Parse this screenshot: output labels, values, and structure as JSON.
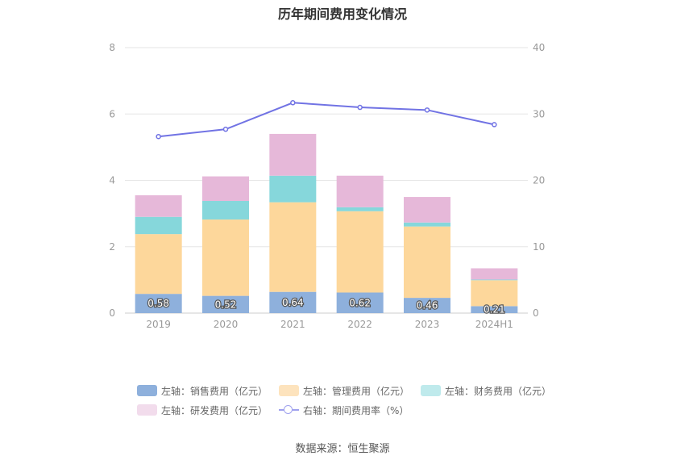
{
  "title": "历年期间费用变化情况",
  "source": "数据来源：恒生聚源",
  "colors": {
    "sales": "#8eb0dc",
    "mgmt": "#fdd79b",
    "finance": "#86d7db",
    "rnd": "#e6b8d9",
    "line": "#7173e4",
    "axis_text": "#999999",
    "grid": "#e6e6e6"
  },
  "legend": [
    {
      "label": "左轴：销售费用（亿元）",
      "color": "#8eb0dc",
      "kind": "bar"
    },
    {
      "label": "左轴：管理费用（亿元）",
      "color": "#fde3bd",
      "kind": "bar"
    },
    {
      "label": "左轴：财务费用（亿元）",
      "color": "#bfeaec",
      "kind": "bar"
    },
    {
      "label": "左轴：研发费用（亿元）",
      "color": "#f2dcec",
      "kind": "bar"
    },
    {
      "label": "右轴：期间费用率（%）",
      "color": "#9fa1ee",
      "kind": "line"
    }
  ],
  "chart_data": {
    "type": "bar",
    "title": "历年期间费用变化情况",
    "categories": [
      "2019",
      "2020",
      "2021",
      "2022",
      "2023",
      "2024H1"
    ],
    "y_left": {
      "ticks": [
        "0",
        "2",
        "4",
        "6",
        "8"
      ],
      "ylim": [
        0,
        8
      ]
    },
    "y_right": {
      "ticks": [
        "0",
        "10",
        "20",
        "30",
        "40"
      ],
      "ylim": [
        0,
        40
      ]
    },
    "stacked": true,
    "series": [
      {
        "name": "左轴：销售费用（亿元）",
        "axis": "left",
        "values": [
          0.58,
          0.52,
          0.64,
          0.62,
          0.46,
          0.21
        ],
        "labels": [
          "0.58",
          "0.52",
          "0.64",
          "0.62",
          "0.46",
          "0.21"
        ]
      },
      {
        "name": "左轴：管理费用（亿元）",
        "axis": "left",
        "values": [
          1.8,
          2.3,
          2.7,
          2.45,
          2.15,
          0.78
        ]
      },
      {
        "name": "左轴：财务费用（亿元）",
        "axis": "left",
        "values": [
          0.52,
          0.56,
          0.8,
          0.12,
          0.12,
          0.02
        ]
      },
      {
        "name": "左轴：研发费用（亿元）",
        "axis": "left",
        "values": [
          0.65,
          0.74,
          1.26,
          0.95,
          0.77,
          0.34
        ]
      },
      {
        "name": "右轴：期间费用率（%）",
        "axis": "right",
        "type": "line",
        "values": [
          26.6,
          27.7,
          31.7,
          31.0,
          30.6,
          28.4
        ]
      }
    ],
    "grid": true,
    "legend_position": "bottom"
  }
}
